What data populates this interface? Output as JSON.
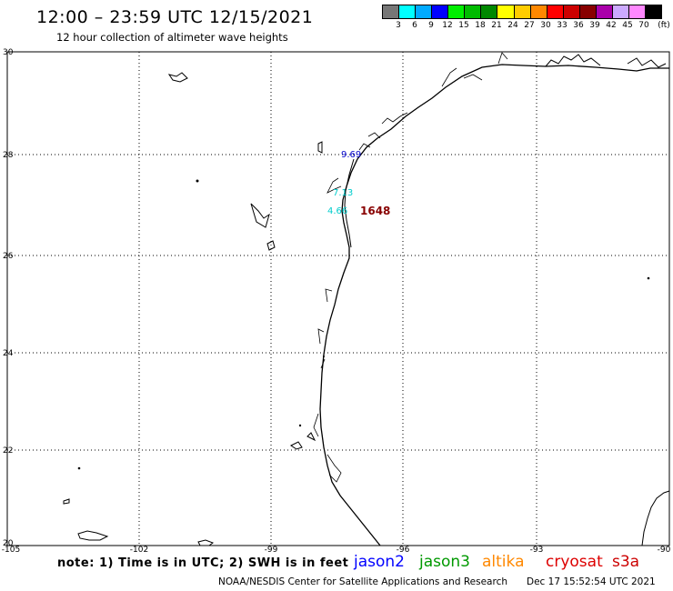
{
  "header": {
    "title": "12:00 – 23:59 UTC 12/15/2021",
    "subtitle": "12 hour collection of altimeter wave heights"
  },
  "color_scale": {
    "unit": "(ft)",
    "labels": [
      "3",
      "6",
      "9",
      "12",
      "15",
      "18",
      "21",
      "24",
      "27",
      "30",
      "33",
      "36",
      "39",
      "42",
      "45",
      "70"
    ],
    "colors": [
      "#777777",
      "#00ffff",
      "#00aaff",
      "#0000ff",
      "#00ee00",
      "#00bb00",
      "#008800",
      "#ffff00",
      "#ffcc00",
      "#ff8800",
      "#ff0000",
      "#cc0000",
      "#880000",
      "#aa00aa",
      "#ccaaff",
      "#ff88ff",
      "#000000"
    ]
  },
  "axes": {
    "lat_labels": [
      "30",
      "28",
      "26",
      "24",
      "22",
      "20"
    ],
    "lon_labels": [
      "-105",
      "-102",
      "-99",
      "-96",
      "-93",
      "-90"
    ]
  },
  "observations": [
    {
      "value": "9.69",
      "color": "#0000cc"
    },
    {
      "value": "7.13",
      "color": "#00cccc"
    },
    {
      "value": "4.66",
      "color": "#00cccc"
    },
    {
      "value": "1648",
      "color": "#880000"
    }
  ],
  "footer": {
    "note": "note: 1) Time is in UTC; 2) SWH is in feet",
    "satellites": [
      {
        "name": "jason2",
        "color": "#0000ff"
      },
      {
        "name": "jason3",
        "color": "#009900"
      },
      {
        "name": "altika",
        "color": "#ff8800"
      },
      {
        "name": "cryosat",
        "color": "#dd0000"
      },
      {
        "name": "s3a",
        "color": "#cc0000"
      }
    ],
    "credit": "NOAA/NESDIS Center for Satellite Applications and Research",
    "timestamp": "Dec 17 15:52:54 UTC 2021"
  }
}
